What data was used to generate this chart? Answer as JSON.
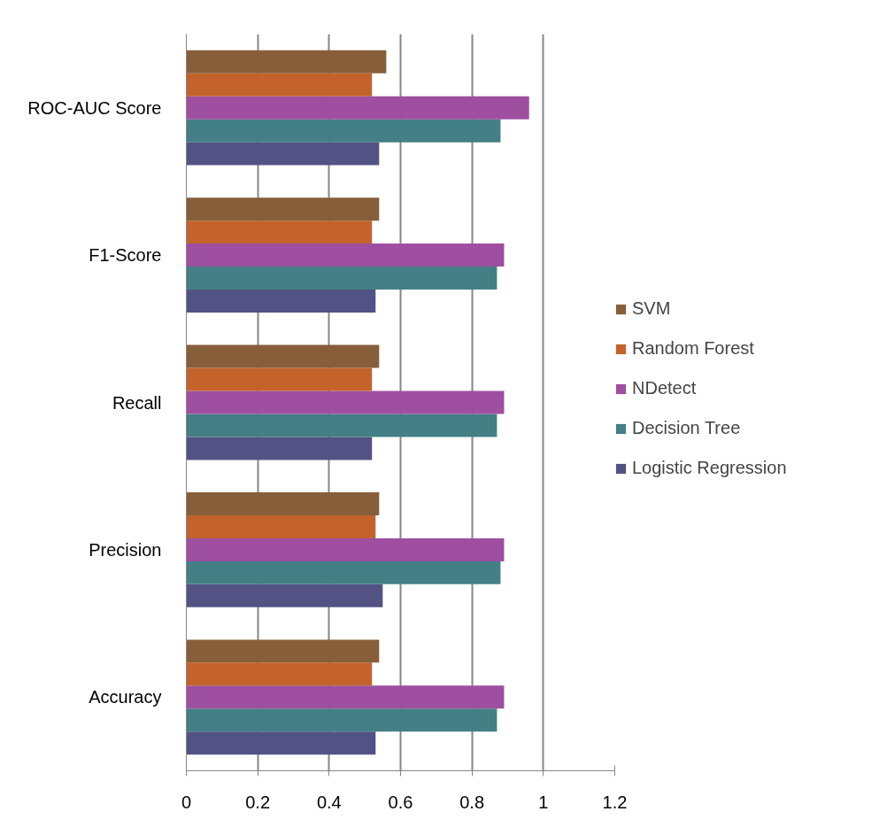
{
  "chart_data": {
    "type": "bar",
    "orientation": "horizontal",
    "categories": [
      "ROC-AUC Score",
      "F1-Score",
      "Recall",
      "Precision",
      "Accuracy"
    ],
    "series": [
      {
        "name": "Logistic Regression",
        "color": "#525284",
        "values": [
          0.54,
          0.53,
          0.52,
          0.55,
          0.53
        ]
      },
      {
        "name": "Decision Tree",
        "color": "#437f85",
        "values": [
          0.88,
          0.87,
          0.87,
          0.88,
          0.87
        ]
      },
      {
        "name": "NDetect",
        "color": "#9e4f9f",
        "values": [
          0.96,
          0.89,
          0.89,
          0.89,
          0.89
        ]
      },
      {
        "name": "Random Forest",
        "color": "#c3632b",
        "values": [
          0.52,
          0.52,
          0.52,
          0.53,
          0.52
        ]
      },
      {
        "name": "SVM",
        "color": "#875e3a",
        "values": [
          0.56,
          0.54,
          0.54,
          0.54,
          0.54
        ]
      }
    ],
    "xlim": [
      0,
      1.2
    ],
    "xticks": [
      0,
      0.2,
      0.4,
      0.6,
      0.8,
      1,
      1.2
    ],
    "grid": "x",
    "legend": "right"
  }
}
